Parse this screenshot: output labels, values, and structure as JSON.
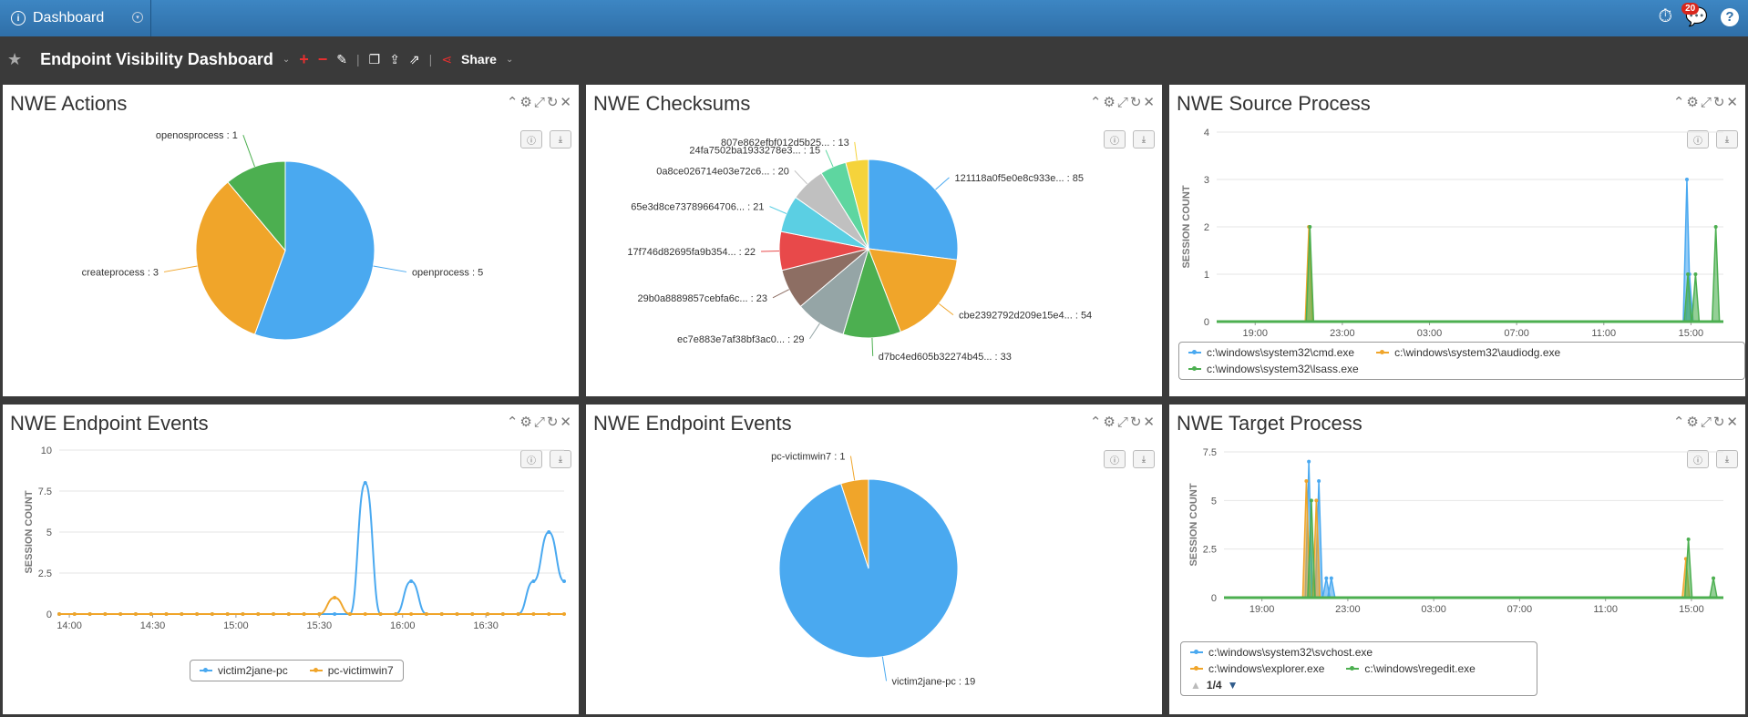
{
  "topbar": {
    "dashboard_label": "Dashboard",
    "notification_count": "20"
  },
  "toolbar": {
    "title": "Endpoint Visibility Dashboard",
    "share_label": "Share"
  },
  "colors": {
    "blue": "#4aa9f0",
    "orange": "#f0a52a",
    "green": "#4caf50",
    "red": "#e8494a",
    "brown": "#8d6e63",
    "cyan": "#5bcfe3",
    "gray": "#95a5a6",
    "lightgray": "#c0c0c0",
    "mint": "#5ed6a0",
    "yellow": "#f5d33b",
    "olive": "#c8dc3a"
  },
  "panels": {
    "actions": {
      "title": "NWE Actions"
    },
    "checksums": {
      "title": "NWE Checksums"
    },
    "source": {
      "title": "NWE Source Process",
      "ylabel": "SESSION COUNT"
    },
    "events_line": {
      "title": "NWE Endpoint Events",
      "ylabel": "SESSION COUNT"
    },
    "events_pie": {
      "title": "NWE Endpoint Events"
    },
    "target": {
      "title": "NWE Target Process",
      "ylabel": "SESSION COUNT",
      "pager": "1/4"
    }
  },
  "chart_data": [
    {
      "id": "actions",
      "type": "pie",
      "slices": [
        {
          "label": "openprocess : 5",
          "value": 5,
          "color": "#4aa9f0"
        },
        {
          "label": "createprocess : 3",
          "value": 3,
          "color": "#f0a52a"
        },
        {
          "label": "openosprocess : 1",
          "value": 1,
          "color": "#4caf50"
        }
      ]
    },
    {
      "id": "checksums",
      "type": "pie",
      "slices": [
        {
          "label": "121118a0f5e0e8c933e... : 85",
          "value": 85,
          "color": "#4aa9f0"
        },
        {
          "label": "cbe2392792d209e15e4... : 54",
          "value": 54,
          "color": "#f0a52a"
        },
        {
          "label": "d7bc4ed605b32274b45... : 33",
          "value": 33,
          "color": "#4caf50"
        },
        {
          "label": "ec7e883e7af38bf3ac0... : 29",
          "value": 29,
          "color": "#95a5a6"
        },
        {
          "label": "29b0a8889857cebfa6c... : 23",
          "value": 23,
          "color": "#8d6e63"
        },
        {
          "label": "17f746d82695fa9b354... : 22",
          "value": 22,
          "color": "#e8494a"
        },
        {
          "label": "65e3d8ce73789664706... : 21",
          "value": 21,
          "color": "#5bcfe3"
        },
        {
          "label": "0a8ce026714e03e72c6... : 20",
          "value": 20,
          "color": "#c0c0c0"
        },
        {
          "label": "24fa7502ba1933278e3... : 15",
          "value": 15,
          "color": "#5ed6a0"
        },
        {
          "label": "807e862efbf012d5b25... : 13",
          "value": 13,
          "color": "#f5d33b"
        }
      ]
    },
    {
      "id": "source",
      "type": "line",
      "x_ticks": [
        "19:00",
        "23:00",
        "03:00",
        "07:00",
        "11:00",
        "15:00"
      ],
      "y_ticks": [
        "0",
        "1",
        "2",
        "3",
        "4"
      ],
      "ylim": [
        0,
        4
      ],
      "series": [
        {
          "name": "c:\\windows\\system32\\cmd.exe",
          "color": "#4aa9f0",
          "spikes": [
            {
              "x": 0.928,
              "y": 3
            },
            {
              "x": 0.933,
              "y": 1
            }
          ]
        },
        {
          "name": "c:\\windows\\system32\\audiodg.exe",
          "color": "#f0a52a",
          "spikes": [
            {
              "x": 0.182,
              "y": 2
            }
          ]
        },
        {
          "name": "c:\\windows\\system32\\lsass.exe",
          "color": "#4caf50",
          "spikes": [
            {
              "x": 0.184,
              "y": 2
            },
            {
              "x": 0.93,
              "y": 1
            },
            {
              "x": 0.945,
              "y": 1
            },
            {
              "x": 0.985,
              "y": 2
            }
          ]
        }
      ]
    },
    {
      "id": "events_line",
      "type": "line",
      "x_ticks": [
        "14:00",
        "14:30",
        "15:00",
        "15:30",
        "16:00",
        "16:30"
      ],
      "y_ticks": [
        "0",
        "2.5",
        "5",
        "7.5",
        "10"
      ],
      "ylim": [
        0,
        10
      ],
      "series": [
        {
          "name": "victim2jane-pc",
          "color": "#4aa9f0",
          "points": [
            [
              0,
              0
            ],
            [
              1,
              0
            ],
            [
              2,
              0
            ],
            [
              3,
              0
            ],
            [
              4,
              0
            ],
            [
              5,
              0
            ],
            [
              6,
              0
            ],
            [
              7,
              0
            ],
            [
              8,
              0
            ],
            [
              9,
              0
            ],
            [
              10,
              0
            ],
            [
              11,
              0
            ],
            [
              12,
              0
            ],
            [
              13,
              0
            ],
            [
              14,
              0
            ],
            [
              15,
              0
            ],
            [
              16,
              0
            ],
            [
              17,
              0
            ],
            [
              18,
              0
            ],
            [
              19,
              0
            ],
            [
              20,
              8
            ],
            [
              21,
              0
            ],
            [
              22,
              0
            ],
            [
              23,
              2
            ],
            [
              24,
              0
            ],
            [
              25,
              0
            ],
            [
              26,
              0
            ],
            [
              27,
              0
            ],
            [
              28,
              0
            ],
            [
              29,
              0
            ],
            [
              30,
              0
            ],
            [
              31,
              2
            ],
            [
              32,
              5
            ],
            [
              33,
              2
            ]
          ]
        },
        {
          "name": "pc-victimwin7",
          "color": "#f0a52a",
          "points": [
            [
              0,
              0
            ],
            [
              1,
              0
            ],
            [
              2,
              0
            ],
            [
              3,
              0
            ],
            [
              4,
              0
            ],
            [
              5,
              0
            ],
            [
              6,
              0
            ],
            [
              7,
              0
            ],
            [
              8,
              0
            ],
            [
              9,
              0
            ],
            [
              10,
              0
            ],
            [
              11,
              0
            ],
            [
              12,
              0
            ],
            [
              13,
              0
            ],
            [
              14,
              0
            ],
            [
              15,
              0
            ],
            [
              16,
              0
            ],
            [
              17,
              0
            ],
            [
              18,
              1
            ],
            [
              19,
              0
            ],
            [
              20,
              0
            ],
            [
              21,
              0
            ],
            [
              22,
              0
            ],
            [
              23,
              0
            ],
            [
              24,
              0
            ],
            [
              25,
              0
            ],
            [
              26,
              0
            ],
            [
              27,
              0
            ],
            [
              28,
              0
            ],
            [
              29,
              0
            ],
            [
              30,
              0
            ],
            [
              31,
              0
            ],
            [
              32,
              0
            ],
            [
              33,
              0
            ]
          ]
        }
      ]
    },
    {
      "id": "events_pie",
      "type": "pie",
      "slices": [
        {
          "label": "victim2jane-pc : 19",
          "value": 19,
          "color": "#4aa9f0"
        },
        {
          "label": "pc-victimwin7 : 1",
          "value": 1,
          "color": "#f0a52a"
        }
      ]
    },
    {
      "id": "target",
      "type": "line",
      "x_ticks": [
        "19:00",
        "23:00",
        "03:00",
        "07:00",
        "11:00",
        "15:00"
      ],
      "y_ticks": [
        "0",
        "2.5",
        "5",
        "7.5"
      ],
      "ylim": [
        0,
        7.5
      ],
      "series": [
        {
          "name": "c:\\windows\\system32\\svchost.exe",
          "color": "#4aa9f0",
          "spikes": [
            {
              "x": 0.17,
              "y": 7
            },
            {
              "x": 0.19,
              "y": 6
            },
            {
              "x": 0.205,
              "y": 1
            },
            {
              "x": 0.215,
              "y": 1
            }
          ]
        },
        {
          "name": "c:\\windows\\explorer.exe",
          "color": "#f0a52a",
          "spikes": [
            {
              "x": 0.165,
              "y": 6
            },
            {
              "x": 0.185,
              "y": 5
            },
            {
              "x": 0.925,
              "y": 2
            }
          ]
        },
        {
          "name": "c:\\windows\\regedit.exe",
          "color": "#4caf50",
          "spikes": [
            {
              "x": 0.175,
              "y": 5
            },
            {
              "x": 0.93,
              "y": 3
            },
            {
              "x": 0.98,
              "y": 1
            }
          ]
        }
      ]
    }
  ]
}
